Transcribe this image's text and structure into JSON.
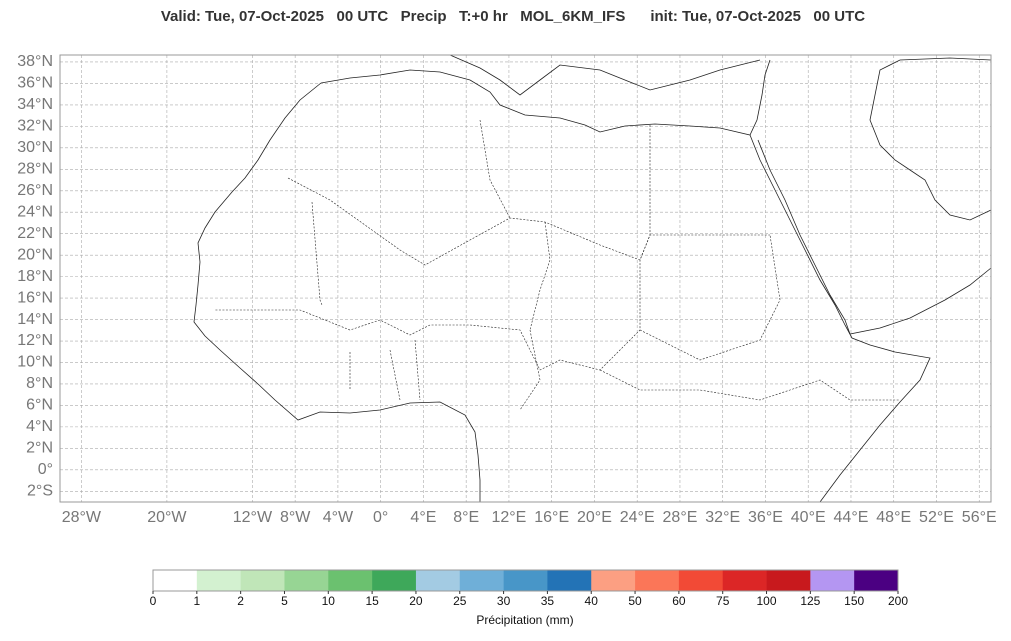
{
  "title": "Valid: Tue, 07-Oct-2025   00 UTC   Precip   T:+0 hr   MOL_6KM_IFS      init: Tue, 07-Oct-2025   00 UTC",
  "map": {
    "xlim": [
      -30,
      57.1
    ],
    "ylim": [
      -3,
      38.65
    ],
    "xticks": [
      {
        "value": -28,
        "label": "28°W"
      },
      {
        "value": -20,
        "label": "20°W"
      },
      {
        "value": -12,
        "label": "12°W"
      },
      {
        "value": -8,
        "label": "8°W"
      },
      {
        "value": -4,
        "label": "4°W"
      },
      {
        "value": 0,
        "label": "0°"
      },
      {
        "value": 4,
        "label": "4°E"
      },
      {
        "value": 8,
        "label": "8°E"
      },
      {
        "value": 12,
        "label": "12°E"
      },
      {
        "value": 16,
        "label": "16°E"
      },
      {
        "value": 20,
        "label": "20°E"
      },
      {
        "value": 24,
        "label": "24°E"
      },
      {
        "value": 28,
        "label": "28°E"
      },
      {
        "value": 32,
        "label": "32°E"
      },
      {
        "value": 36,
        "label": "36°E"
      },
      {
        "value": 40,
        "label": "40°E"
      },
      {
        "value": 44,
        "label": "44°E"
      },
      {
        "value": 48,
        "label": "48°E"
      },
      {
        "value": 52,
        "label": "52°E"
      },
      {
        "value": 56,
        "label": "56°E"
      }
    ],
    "yticks": [
      {
        "value": 38,
        "label": "38°N"
      },
      {
        "value": 36,
        "label": "36°N"
      },
      {
        "value": 34,
        "label": "34°N"
      },
      {
        "value": 32,
        "label": "32°N"
      },
      {
        "value": 30,
        "label": "30°N"
      },
      {
        "value": 28,
        "label": "28°N"
      },
      {
        "value": 26,
        "label": "26°N"
      },
      {
        "value": 24,
        "label": "24°N"
      },
      {
        "value": 22,
        "label": "22°N"
      },
      {
        "value": 20,
        "label": "20°N"
      },
      {
        "value": 18,
        "label": "18°N"
      },
      {
        "value": 16,
        "label": "16°N"
      },
      {
        "value": 14,
        "label": "14°N"
      },
      {
        "value": 12,
        "label": "12°N"
      },
      {
        "value": 10,
        "label": "10°N"
      },
      {
        "value": 8,
        "label": "8°N"
      },
      {
        "value": 6,
        "label": "6°N"
      },
      {
        "value": 4,
        "label": "4°N"
      },
      {
        "value": 2,
        "label": "2°N"
      },
      {
        "value": 0,
        "label": "0°"
      },
      {
        "value": -2,
        "label": "2°S"
      }
    ],
    "grid": true
  },
  "colorbar": {
    "ticks": [
      0,
      1,
      2,
      5,
      10,
      15,
      20,
      25,
      30,
      35,
      40,
      50,
      60,
      75,
      100,
      125,
      150,
      200
    ],
    "colors": [
      "#ffffff",
      "#d3f1d0",
      "#c0e6b8",
      "#97d594",
      "#6bc16f",
      "#3ea85a",
      "#a3cbe3",
      "#6fafd8",
      "#4896c8",
      "#2373b6",
      "#fc9f82",
      "#fb7658",
      "#f24a36",
      "#dc2626",
      "#c8191d",
      "#b496f2",
      "#4b0082"
    ],
    "label": "Précipitation (mm)"
  }
}
